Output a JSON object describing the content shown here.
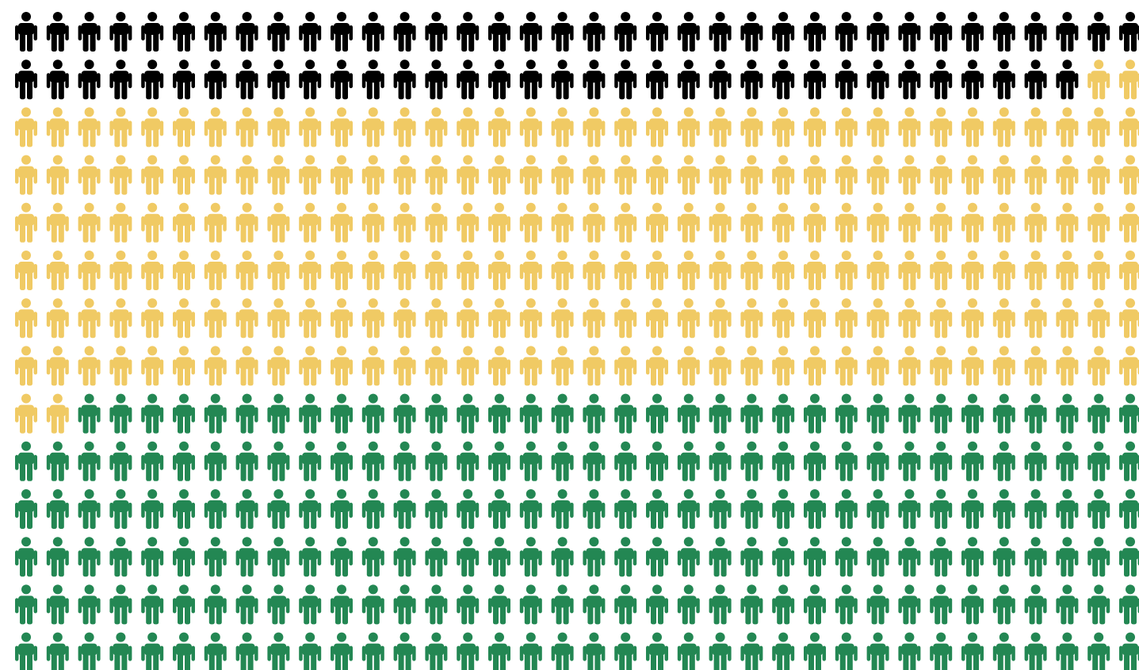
{
  "chart_data": {
    "type": "pictogram",
    "icon": "person-icon",
    "columns": 36,
    "rows": 14,
    "series": [
      {
        "color": "#000000",
        "count": 70
      },
      {
        "color": "#F0CA64",
        "count": 220
      },
      {
        "color": "#238753",
        "count": 214
      }
    ]
  }
}
